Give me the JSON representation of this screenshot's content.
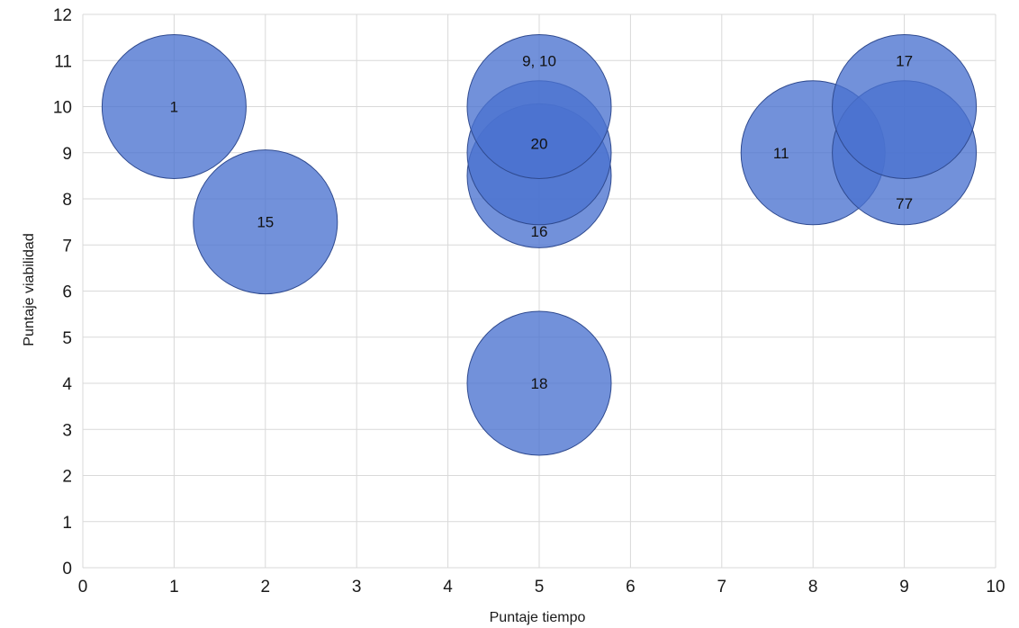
{
  "chart_data": {
    "type": "scatter",
    "subtype": "bubble",
    "xlabel": "Puntaje tiempo",
    "ylabel": "Puntaje viabilidad",
    "xlim": [
      0,
      10
    ],
    "ylim": [
      0,
      12
    ],
    "x_ticks": [
      "0",
      "1",
      "2",
      "3",
      "4",
      "5",
      "6",
      "7",
      "8",
      "9",
      "10"
    ],
    "y_ticks": [
      "0",
      "1",
      "2",
      "3",
      "4",
      "5",
      "6",
      "7",
      "8",
      "9",
      "10",
      "11",
      "12"
    ],
    "grid": true,
    "bubble_color": "#4a72d0",
    "bubble_border": "#2f4a8f",
    "points": [
      {
        "label": "1",
        "x": 1,
        "y": 10
      },
      {
        "label": "15",
        "x": 2,
        "y": 7.5
      },
      {
        "label": "16",
        "x": 5,
        "y": 8.5
      },
      {
        "label": "20",
        "x": 5,
        "y": 9
      },
      {
        "label": "9, 10",
        "x": 5,
        "y": 10
      },
      {
        "label": "18",
        "x": 5,
        "y": 4
      },
      {
        "label": "11",
        "x": 8,
        "y": 9
      },
      {
        "label": "77",
        "x": 9,
        "y": 9
      },
      {
        "label": "17",
        "x": 9,
        "y": 10
      }
    ],
    "point_labels": [
      {
        "text": "1",
        "x": 1,
        "y": 10
      },
      {
        "text": "15",
        "x": 2,
        "y": 7.5
      },
      {
        "text": "16",
        "x": 5,
        "y": 7.3
      },
      {
        "text": "20",
        "x": 5,
        "y": 9.2
      },
      {
        "text": "9, 10",
        "x": 5,
        "y": 11
      },
      {
        "text": "18",
        "x": 5,
        "y": 4
      },
      {
        "text": "11",
        "x": 7.65,
        "y": 9
      },
      {
        "text": "77",
        "x": 9,
        "y": 7.9
      },
      {
        "text": "17",
        "x": 9,
        "y": 11
      }
    ]
  }
}
